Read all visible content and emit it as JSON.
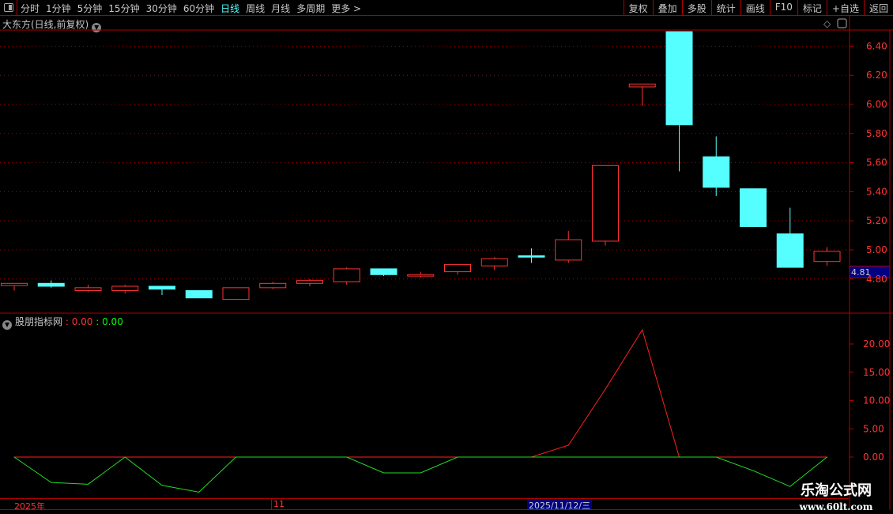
{
  "topbar": {
    "period_tabs": [
      "分时",
      "1分钟",
      "5分钟",
      "15分钟",
      "30分钟",
      "60分钟",
      "日线",
      "周线",
      "月线",
      "多周期",
      "更多 >"
    ],
    "active_tab": "日线",
    "right_buttons": [
      "复权",
      "叠加",
      "多股",
      "统计",
      "画线",
      "F10",
      "标记",
      "+自选",
      "返回"
    ]
  },
  "title": "大东方(日线,前复权)",
  "indicator": {
    "name": "股朋指标网",
    "value1": ": 0.00",
    "value2": ": 0.00"
  },
  "date_axis": {
    "labels": [
      "2025年",
      "11"
    ],
    "cursor_date": "2025/11/12/三"
  },
  "price_tag": "4.81",
  "watermark": {
    "line1": "乐淘公式网",
    "line2": "www.60lt.com"
  },
  "colors": {
    "up": "#ff3333",
    "down": "#55ffff",
    "grid": "#b00000",
    "line_red": "#ff2020",
    "line_green": "#22dd22"
  },
  "chart_data": [
    {
      "type": "candlestick",
      "title": "大东方(日线,前复权)",
      "ylim": [
        4.6,
        6.5
      ],
      "yticks": [
        "6.40",
        "6.20",
        "6.00",
        "5.80",
        "5.60",
        "5.40",
        "5.20",
        "5.00",
        "4.80"
      ],
      "ohlc": [
        [
          4.755,
          4.77,
          4.72,
          4.77
        ],
        [
          4.77,
          4.79,
          4.74,
          4.75
        ],
        [
          4.72,
          4.76,
          4.71,
          4.74
        ],
        [
          4.72,
          4.76,
          4.7,
          4.75
        ],
        [
          4.75,
          4.75,
          4.69,
          4.73
        ],
        [
          4.72,
          4.72,
          4.67,
          4.67
        ],
        [
          4.66,
          4.74,
          4.66,
          4.74
        ],
        [
          4.74,
          4.78,
          4.73,
          4.77
        ],
        [
          4.77,
          4.8,
          4.75,
          4.79
        ],
        [
          4.78,
          4.88,
          4.76,
          4.87
        ],
        [
          4.87,
          4.87,
          4.82,
          4.83
        ],
        [
          4.82,
          4.85,
          4.81,
          4.83
        ],
        [
          4.85,
          4.9,
          4.83,
          4.9
        ],
        [
          4.89,
          4.95,
          4.86,
          4.94
        ],
        [
          4.96,
          5.01,
          4.91,
          4.95
        ],
        [
          4.93,
          5.13,
          4.91,
          5.07
        ],
        [
          5.06,
          5.58,
          5.03,
          5.58
        ],
        [
          6.12,
          6.14,
          5.99,
          6.14
        ],
        [
          6.5,
          6.5,
          5.54,
          5.86
        ],
        [
          5.64,
          5.78,
          5.37,
          5.43
        ],
        [
          5.42,
          5.42,
          5.16,
          5.16
        ],
        [
          5.11,
          5.29,
          4.88,
          4.88
        ],
        [
          4.92,
          5.02,
          4.89,
          4.99
        ]
      ]
    },
    {
      "type": "line",
      "title": "股朋指标网",
      "ylim": [
        -7,
        25
      ],
      "yticks": [
        "20.00",
        "15.00",
        "10.00",
        "5.00",
        "0.00"
      ],
      "series": [
        {
          "color": "red",
          "values": [
            0,
            0,
            0,
            0,
            0,
            0,
            0,
            0,
            0,
            0,
            0,
            0,
            0,
            0,
            0,
            2.1,
            12.0,
            22.5,
            0,
            0,
            0,
            0,
            0
          ]
        },
        {
          "color": "green",
          "values": [
            0,
            -4.5,
            -4.8,
            0,
            -5.0,
            -6.2,
            0,
            0,
            0,
            0,
            -2.8,
            -2.8,
            0,
            0,
            0,
            0,
            0,
            0,
            0,
            0,
            -2.4,
            -5.2,
            0
          ]
        }
      ]
    }
  ]
}
